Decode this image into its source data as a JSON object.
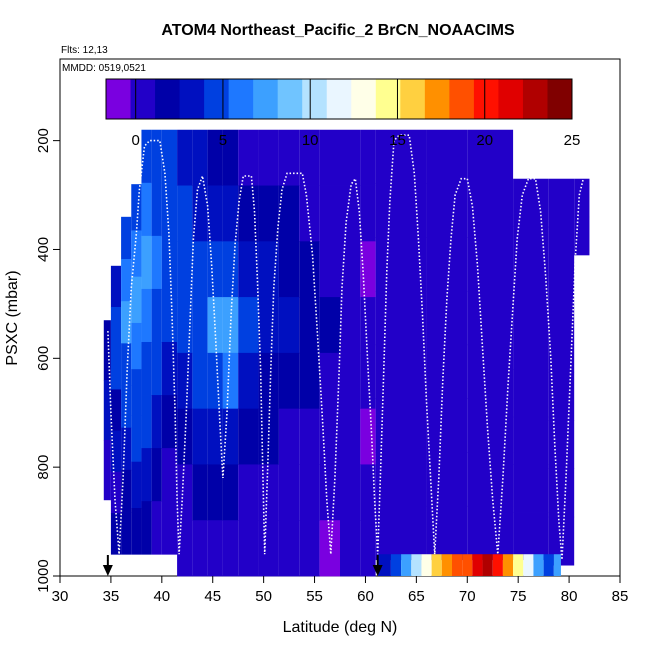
{
  "header": {
    "title": "ATOM4 Northeast_Pacific_2 BrCN_NOAACIMS",
    "flights": "Flts: 12,13",
    "dates": "MMDD: 0519,0521"
  },
  "colorbar": {
    "min": -1.7,
    "max": 25,
    "ticks": [
      "0",
      "5",
      "10",
      "15",
      "20",
      "25"
    ],
    "tick_values": [
      0,
      5,
      10,
      15,
      20,
      25
    ],
    "divider_values": [
      0,
      5,
      10,
      15,
      20,
      25
    ],
    "colors": [
      "#7a00e0",
      "#2200c8",
      "#0000a8",
      "#0010c0",
      "#0040e0",
      "#1e78ff",
      "#3ca0ff",
      "#70c4ff",
      "#b4e2ff",
      "#eaf6ff",
      "#ffffe8",
      "#ffff90",
      "#ffd040",
      "#ff9000",
      "#ff5000",
      "#ff1000",
      "#e00000",
      "#b00000",
      "#800000"
    ]
  },
  "chart_data": {
    "type": "heatmap",
    "title": "ATOM4 Northeast_Pacific_2 BrCN_NOAACIMS",
    "xlabel": "Latitude (deg N)",
    "ylabel": "PSXC (mbar)",
    "xlim": [
      30,
      85
    ],
    "ylim": [
      1000,
      50
    ],
    "xticks": [
      "30",
      "35",
      "40",
      "45",
      "50",
      "55",
      "60",
      "65",
      "70",
      "75",
      "80",
      "85"
    ],
    "xtick_values": [
      30,
      35,
      40,
      45,
      50,
      55,
      60,
      65,
      70,
      75,
      80,
      85
    ],
    "yticks": [
      "200",
      "400",
      "600",
      "800",
      "1000"
    ],
    "ytick_values": [
      200,
      400,
      600,
      800,
      1000
    ],
    "arrow_latitudes": [
      34.7,
      61.2
    ],
    "columns": [
      {
        "lat0": 34.3,
        "lat1": 35.0,
        "p_top": 530,
        "p_bot": 860,
        "v": [
          2,
          3,
          1
        ]
      },
      {
        "lat0": 35.0,
        "lat1": 36.0,
        "p_top": 430,
        "p_bot": 960,
        "v": [
          3,
          5,
          4,
          2,
          3,
          1,
          2
        ]
      },
      {
        "lat0": 36.0,
        "lat1": 37.0,
        "p_top": 340,
        "p_bot": 960,
        "v": [
          4,
          6,
          7,
          5,
          4,
          3,
          2,
          2
        ]
      },
      {
        "lat0": 37.0,
        "lat1": 38.0,
        "p_top": 280,
        "p_bot": 960,
        "v": [
          5,
          6,
          7,
          6,
          5,
          4,
          3,
          2
        ]
      },
      {
        "lat0": 38.0,
        "lat1": 39.0,
        "p_top": 180,
        "p_bot": 960,
        "v": [
          5,
          6,
          7,
          6,
          5,
          4,
          3,
          2
        ]
      },
      {
        "lat0": 39.0,
        "lat1": 40.0,
        "p_top": 180,
        "p_bot": 960,
        "v": [
          4,
          5,
          6,
          5,
          4,
          3,
          2,
          1
        ]
      },
      {
        "lat0": 40.0,
        "lat1": 41.5,
        "p_top": 180,
        "p_bot": 960,
        "v": [
          4,
          5,
          5,
          4,
          3,
          2,
          1,
          1
        ]
      },
      {
        "lat0": 41.5,
        "lat1": 43.0,
        "p_top": 180,
        "p_bot": 1000,
        "v": [
          3,
          4,
          5,
          4,
          3,
          2,
          1,
          1
        ]
      },
      {
        "lat0": 43.0,
        "lat1": 44.5,
        "p_top": 180,
        "p_bot": 1000,
        "v": [
          3,
          3,
          4,
          5,
          4,
          3,
          2,
          1
        ]
      },
      {
        "lat0": 44.5,
        "lat1": 46.0,
        "p_top": 180,
        "p_bot": 1000,
        "v": [
          2,
          3,
          5,
          7,
          5,
          3,
          2,
          1
        ]
      },
      {
        "lat0": 46.0,
        "lat1": 47.5,
        "p_top": 180,
        "p_bot": 1000,
        "v": [
          2,
          3,
          4,
          8,
          6,
          3,
          2,
          1
        ]
      },
      {
        "lat0": 47.5,
        "lat1": 49.5,
        "p_top": 180,
        "p_bot": 1000,
        "v": [
          1,
          2,
          3,
          4,
          3,
          2,
          1,
          1
        ]
      },
      {
        "lat0": 49.5,
        "lat1": 51.5,
        "p_top": 180,
        "p_bot": 1000,
        "v": [
          1,
          2,
          3,
          3,
          2,
          2,
          1,
          0
        ]
      },
      {
        "lat0": 51.5,
        "lat1": 53.5,
        "p_top": 180,
        "p_bot": 1000,
        "v": [
          1,
          2,
          2,
          3,
          2,
          1,
          1,
          0
        ]
      },
      {
        "lat0": 53.5,
        "lat1": 55.5,
        "p_top": 180,
        "p_bot": 1000,
        "v": [
          0,
          1,
          2,
          2,
          2,
          1,
          1,
          0
        ]
      },
      {
        "lat0": 55.5,
        "lat1": 57.5,
        "p_top": 180,
        "p_bot": 1000,
        "v": [
          0,
          1,
          1,
          2,
          1,
          1,
          0,
          -1
        ]
      },
      {
        "lat0": 57.5,
        "lat1": 59.5,
        "p_top": 180,
        "p_bot": 1000,
        "v": [
          0,
          1,
          1,
          1,
          1,
          0,
          0,
          0
        ]
      },
      {
        "lat0": 59.5,
        "lat1": 61.0,
        "p_top": 180,
        "p_bot": 1000,
        "v": [
          0,
          0,
          -1,
          0,
          0,
          -1,
          0,
          0
        ]
      },
      {
        "lat0": 61.0,
        "lat1": 63.0,
        "p_top": 180,
        "p_bot": 970,
        "v": [
          0,
          0,
          0,
          0,
          0,
          0,
          0,
          0
        ]
      },
      {
        "lat0": 63.0,
        "lat1": 66.0,
        "p_top": 180,
        "p_bot": 970,
        "v": [
          0,
          0,
          0,
          0,
          0,
          0,
          0,
          0
        ]
      },
      {
        "lat0": 66.0,
        "lat1": 70.0,
        "p_top": 180,
        "p_bot": 970,
        "v": [
          0,
          0,
          0,
          0,
          0,
          0,
          0,
          0
        ]
      },
      {
        "lat0": 70.0,
        "lat1": 74.5,
        "p_top": 180,
        "p_bot": 970,
        "v": [
          0,
          0,
          0,
          0,
          0,
          0,
          0,
          0
        ]
      },
      {
        "lat0": 74.5,
        "lat1": 78.0,
        "p_top": 270,
        "p_bot": 970,
        "v": [
          0,
          0,
          0,
          0,
          0,
          0,
          0,
          0
        ]
      },
      {
        "lat0": 78.0,
        "lat1": 80.5,
        "p_top": 270,
        "p_bot": 980,
        "v": [
          0,
          0,
          0,
          0,
          0,
          0,
          0,
          0
        ]
      },
      {
        "lat0": 80.5,
        "lat1": 82.0,
        "p_top": 270,
        "p_bot": 410,
        "v": [
          0,
          0
        ]
      }
    ],
    "surface_strip": {
      "p_top": 960,
      "p_bot": 1000,
      "cells": [
        {
          "lat0": 61.2,
          "lat1": 62.5,
          "v": 3
        },
        {
          "lat0": 62.5,
          "lat1": 63.5,
          "v": 5
        },
        {
          "lat0": 63.5,
          "lat1": 64.5,
          "v": 7
        },
        {
          "lat0": 64.5,
          "lat1": 65.5,
          "v": 10
        },
        {
          "lat0": 65.5,
          "lat1": 66.5,
          "v": 13
        },
        {
          "lat0": 66.5,
          "lat1": 67.5,
          "v": 16
        },
        {
          "lat0": 67.5,
          "lat1": 68.5,
          "v": 17
        },
        {
          "lat0": 68.5,
          "lat1": 69.5,
          "v": 18
        },
        {
          "lat0": 69.5,
          "lat1": 70.5,
          "v": 19
        },
        {
          "lat0": 70.5,
          "lat1": 71.5,
          "v": 21
        },
        {
          "lat0": 71.5,
          "lat1": 72.5,
          "v": 23
        },
        {
          "lat0": 72.5,
          "lat1": 73.5,
          "v": 20
        },
        {
          "lat0": 73.5,
          "lat1": 74.5,
          "v": 17
        },
        {
          "lat0": 74.5,
          "lat1": 75.5,
          "v": 14
        },
        {
          "lat0": 75.5,
          "lat1": 76.5,
          "v": 11
        },
        {
          "lat0": 76.5,
          "lat1": 77.5,
          "v": 8
        },
        {
          "lat0": 77.5,
          "lat1": 78.5,
          "v": 5
        },
        {
          "lat0": 78.5,
          "lat1": 79.2,
          "v": 7
        }
      ]
    },
    "flight_track": [
      [
        34.7,
        550
      ],
      [
        35.0,
        700
      ],
      [
        35.4,
        860
      ],
      [
        35.8,
        960
      ],
      [
        36.2,
        820
      ],
      [
        36.6,
        620
      ],
      [
        37.0,
        470
      ],
      [
        37.5,
        370
      ],
      [
        37.8,
        290
      ],
      [
        38.3,
        210
      ],
      [
        38.8,
        200
      ],
      [
        39.8,
        200
      ],
      [
        40.3,
        260
      ],
      [
        40.7,
        370
      ],
      [
        41.0,
        520
      ],
      [
        41.3,
        700
      ],
      [
        41.5,
        860
      ],
      [
        41.7,
        960
      ],
      [
        42.0,
        860
      ],
      [
        42.4,
        700
      ],
      [
        42.8,
        520
      ],
      [
        43.1,
        380
      ],
      [
        43.5,
        290
      ],
      [
        44.0,
        265
      ],
      [
        44.5,
        320
      ],
      [
        44.9,
        430
      ],
      [
        45.3,
        570
      ],
      [
        45.7,
        720
      ],
      [
        46.0,
        820
      ],
      [
        46.4,
        700
      ],
      [
        46.8,
        520
      ],
      [
        47.2,
        390
      ],
      [
        47.6,
        310
      ],
      [
        48.0,
        265
      ],
      [
        48.8,
        265
      ],
      [
        49.1,
        330
      ],
      [
        49.4,
        460
      ],
      [
        49.7,
        620
      ],
      [
        49.9,
        790
      ],
      [
        50.1,
        960
      ],
      [
        50.4,
        800
      ],
      [
        50.7,
        620
      ],
      [
        51.0,
        470
      ],
      [
        51.4,
        360
      ],
      [
        51.8,
        290
      ],
      [
        52.3,
        260
      ],
      [
        53.8,
        260
      ],
      [
        54.2,
        300
      ],
      [
        54.8,
        410
      ],
      [
        55.3,
        560
      ],
      [
        55.8,
        720
      ],
      [
        56.2,
        860
      ],
      [
        56.6,
        960
      ],
      [
        57.0,
        820
      ],
      [
        57.4,
        630
      ],
      [
        57.7,
        470
      ],
      [
        58.1,
        350
      ],
      [
        58.6,
        280
      ],
      [
        59.0,
        270
      ],
      [
        59.4,
        330
      ],
      [
        59.8,
        450
      ],
      [
        60.2,
        600
      ],
      [
        60.6,
        740
      ],
      [
        60.9,
        860
      ],
      [
        61.2,
        960
      ],
      [
        61.5,
        800
      ],
      [
        61.8,
        620
      ],
      [
        62.1,
        440
      ],
      [
        62.4,
        310
      ],
      [
        62.8,
        200
      ],
      [
        63.3,
        190
      ],
      [
        64.3,
        190
      ],
      [
        64.8,
        260
      ],
      [
        65.2,
        380
      ],
      [
        65.6,
        520
      ],
      [
        66.0,
        680
      ],
      [
        66.4,
        820
      ],
      [
        66.8,
        960
      ],
      [
        67.2,
        820
      ],
      [
        67.6,
        640
      ],
      [
        68.0,
        490
      ],
      [
        68.4,
        380
      ],
      [
        68.8,
        300
      ],
      [
        69.4,
        270
      ],
      [
        70.0,
        270
      ],
      [
        70.5,
        320
      ],
      [
        71.0,
        430
      ],
      [
        71.5,
        580
      ],
      [
        72.0,
        730
      ],
      [
        72.5,
        860
      ],
      [
        73.0,
        960
      ],
      [
        73.5,
        820
      ],
      [
        74.0,
        650
      ],
      [
        74.5,
        500
      ],
      [
        74.9,
        380
      ],
      [
        75.4,
        300
      ],
      [
        76.0,
        270
      ],
      [
        76.7,
        270
      ],
      [
        77.2,
        330
      ],
      [
        77.7,
        450
      ],
      [
        78.2,
        600
      ],
      [
        78.6,
        760
      ],
      [
        79.0,
        900
      ],
      [
        79.3,
        970
      ],
      [
        79.7,
        820
      ],
      [
        80.2,
        600
      ],
      [
        80.6,
        420
      ],
      [
        81.0,
        300
      ],
      [
        81.4,
        270
      ]
    ]
  }
}
